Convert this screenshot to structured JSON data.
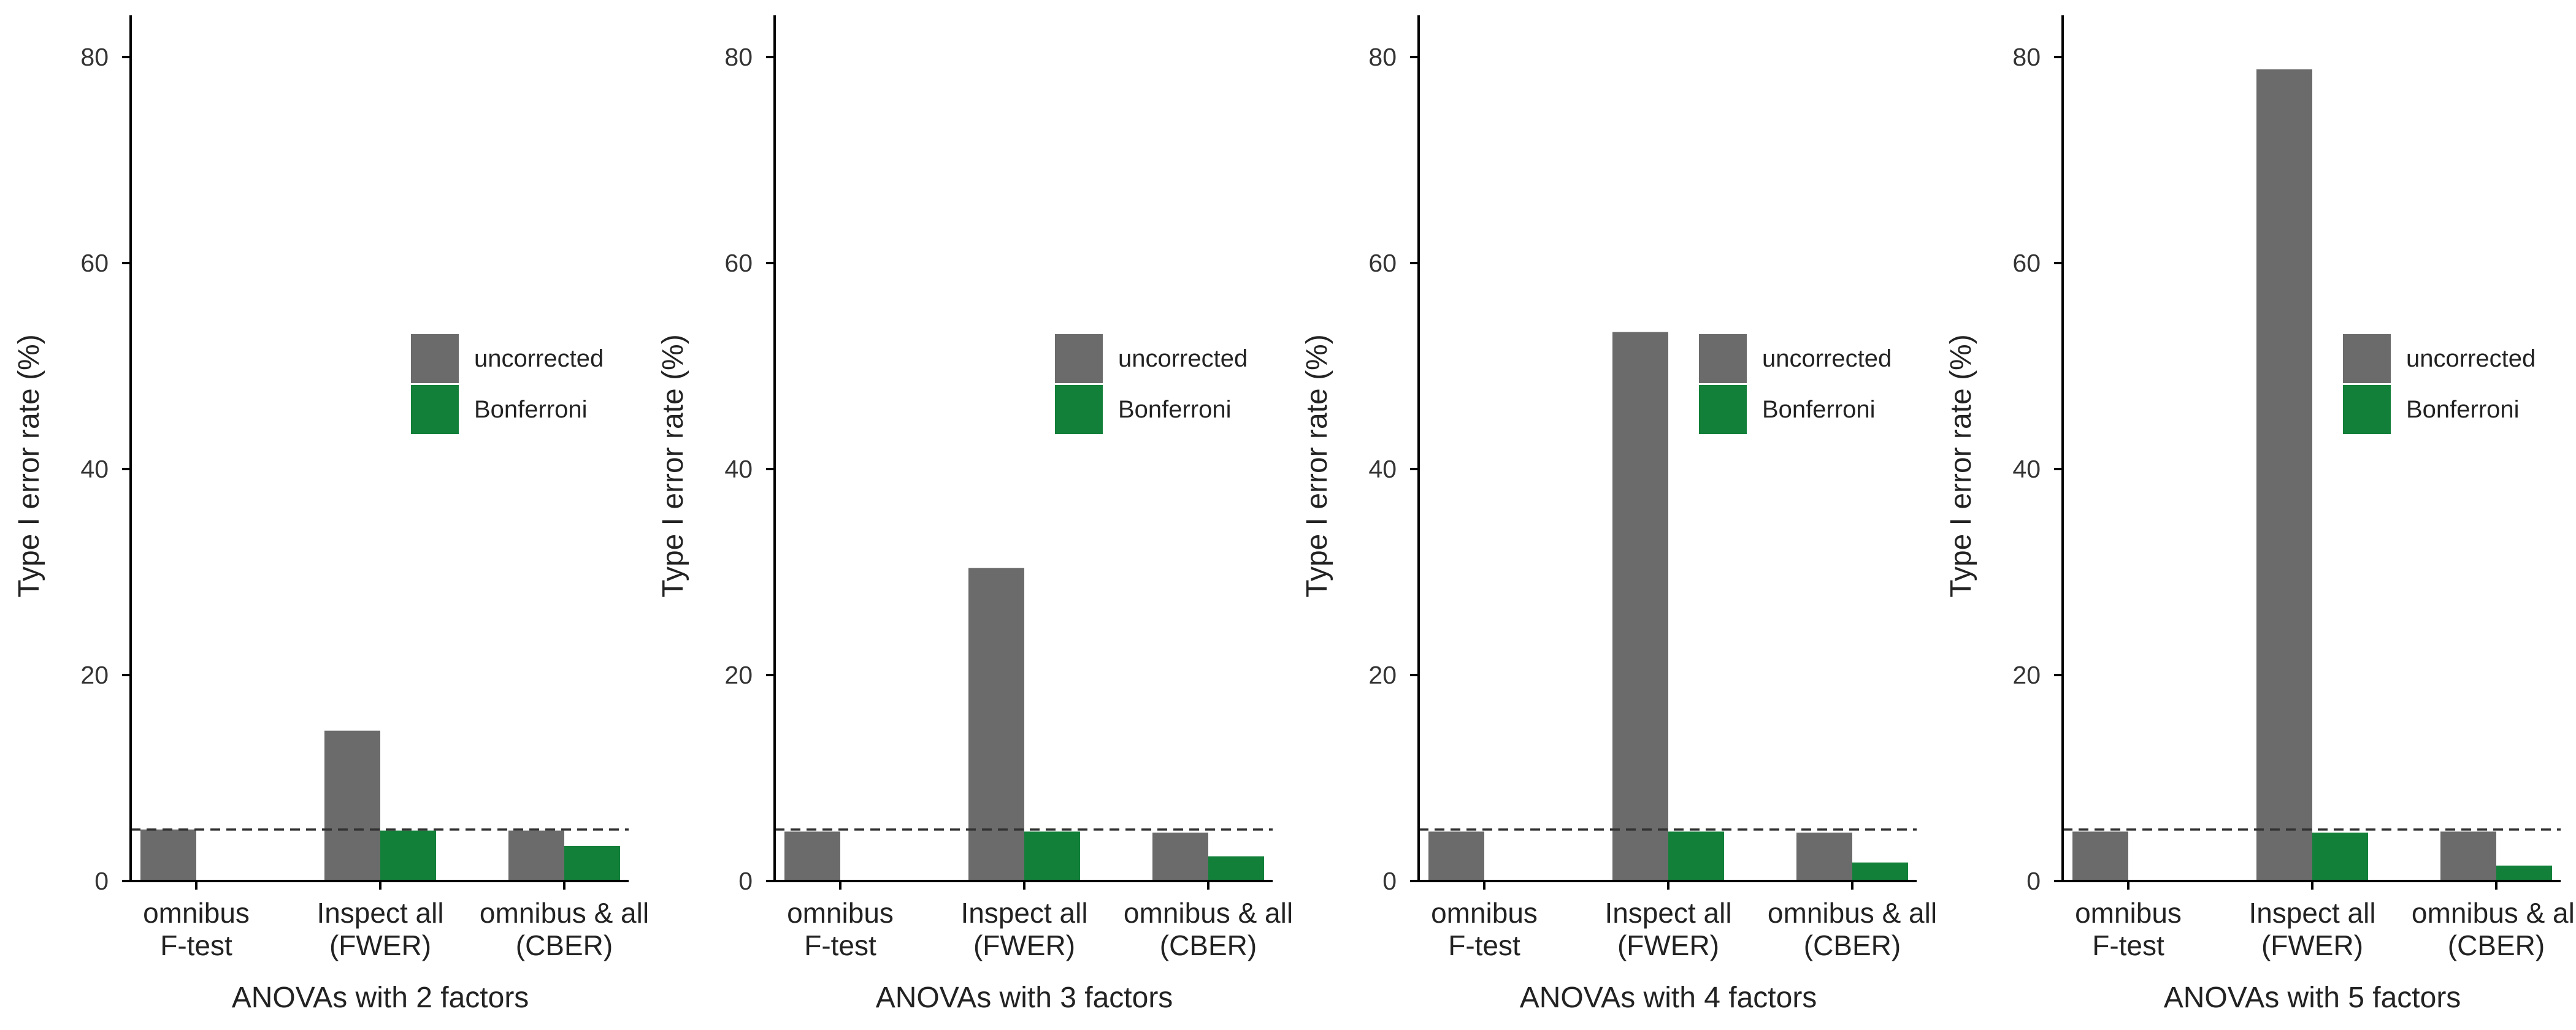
{
  "colors": {
    "uncorrected": "#6b6b6b",
    "bonferroni": "#13803a",
    "reference_line": "#333333",
    "axis": "#000000"
  },
  "chart_data": [
    {
      "type": "bar",
      "title": "",
      "xlabel": "ANOVAs with 2 factors",
      "ylabel": "Type I error rate (%)",
      "ylim": [
        0,
        84
      ],
      "yticks": [
        0,
        20,
        40,
        60,
        80
      ],
      "categories": [
        [
          "omnibus",
          "F-test"
        ],
        [
          "Inspect all",
          "(FWER)"
        ],
        [
          "omnibus & all",
          "(CBER)"
        ]
      ],
      "series": [
        {
          "name": "uncorrected",
          "values": [
            5.0,
            14.6,
            4.9
          ]
        },
        {
          "name": "Bonferroni",
          "values": [
            null,
            4.9,
            3.4
          ]
        }
      ],
      "reference_line": 5,
      "legend": "center-right",
      "grid": false
    },
    {
      "type": "bar",
      "title": "",
      "xlabel": "ANOVAs with 3 factors",
      "ylabel": "Type I error rate (%)",
      "ylim": [
        0,
        84
      ],
      "yticks": [
        0,
        20,
        40,
        60,
        80
      ],
      "categories": [
        [
          "omnibus",
          "F-test"
        ],
        [
          "Inspect all",
          "(FWER)"
        ],
        [
          "omnibus & all",
          "(CBER)"
        ]
      ],
      "series": [
        {
          "name": "uncorrected",
          "values": [
            4.8,
            30.4,
            4.7
          ]
        },
        {
          "name": "Bonferroni",
          "values": [
            null,
            4.8,
            2.4
          ]
        }
      ],
      "reference_line": 5,
      "legend": "center-right",
      "grid": false
    },
    {
      "type": "bar",
      "title": "",
      "xlabel": "ANOVAs with 4 factors",
      "ylabel": "Type I error rate (%)",
      "ylim": [
        0,
        84
      ],
      "yticks": [
        0,
        20,
        40,
        60,
        80
      ],
      "categories": [
        [
          "omnibus",
          "F-test"
        ],
        [
          "Inspect all",
          "(FWER)"
        ],
        [
          "omnibus & all",
          "(CBER)"
        ]
      ],
      "series": [
        {
          "name": "uncorrected",
          "values": [
            4.8,
            53.3,
            4.7
          ]
        },
        {
          "name": "Bonferroni",
          "values": [
            null,
            4.8,
            1.8
          ]
        }
      ],
      "reference_line": 5,
      "legend": "center-right",
      "grid": false
    },
    {
      "type": "bar",
      "title": "",
      "xlabel": "ANOVAs with 5 factors",
      "ylabel": "Type I error rate (%)",
      "ylim": [
        0,
        84
      ],
      "yticks": [
        0,
        20,
        40,
        60,
        80
      ],
      "categories": [
        [
          "omnibus",
          "F-test"
        ],
        [
          "Inspect all",
          "(FWER)"
        ],
        [
          "omnibus & all",
          "(CBER)"
        ]
      ],
      "series": [
        {
          "name": "uncorrected",
          "values": [
            4.8,
            78.8,
            4.8
          ]
        },
        {
          "name": "Bonferroni",
          "values": [
            null,
            4.7,
            1.5
          ]
        }
      ],
      "reference_line": 5,
      "legend": "center-right",
      "grid": false
    }
  ]
}
